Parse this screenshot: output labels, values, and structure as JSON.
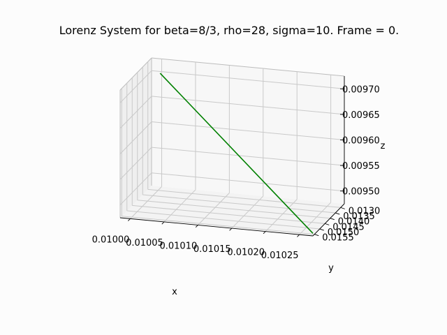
{
  "chart_data": {
    "type": "line",
    "projection": "3d",
    "title": "Lorenz System for beta=8/3, rho=28, sigma=10. Frame = 0.",
    "xlabel": "x",
    "ylabel": "y",
    "zlabel": "z",
    "xlim": [
      0.009985,
      0.01027
    ],
    "ylim": [
      0.01265,
      0.01565
    ],
    "zlim": [
      0.009475,
      0.009725
    ],
    "xticks": [
      "0.01000",
      "0.01005",
      "0.01010",
      "0.01015",
      "0.01020",
      "0.01025"
    ],
    "yticks": [
      "0.0130",
      "0.0135",
      "0.0140",
      "0.0145",
      "0.0150",
      "0.0155"
    ],
    "zticks": [
      "0.00950",
      "0.00955",
      "0.00960",
      "0.00965",
      "0.00970"
    ],
    "grid": true,
    "series": [
      {
        "color": "#008000",
        "x": [
          0.01,
          0.01027
        ],
        "y": [
          0.0128,
          0.01565
        ],
        "z": [
          0.0097,
          0.00948
        ]
      }
    ]
  }
}
